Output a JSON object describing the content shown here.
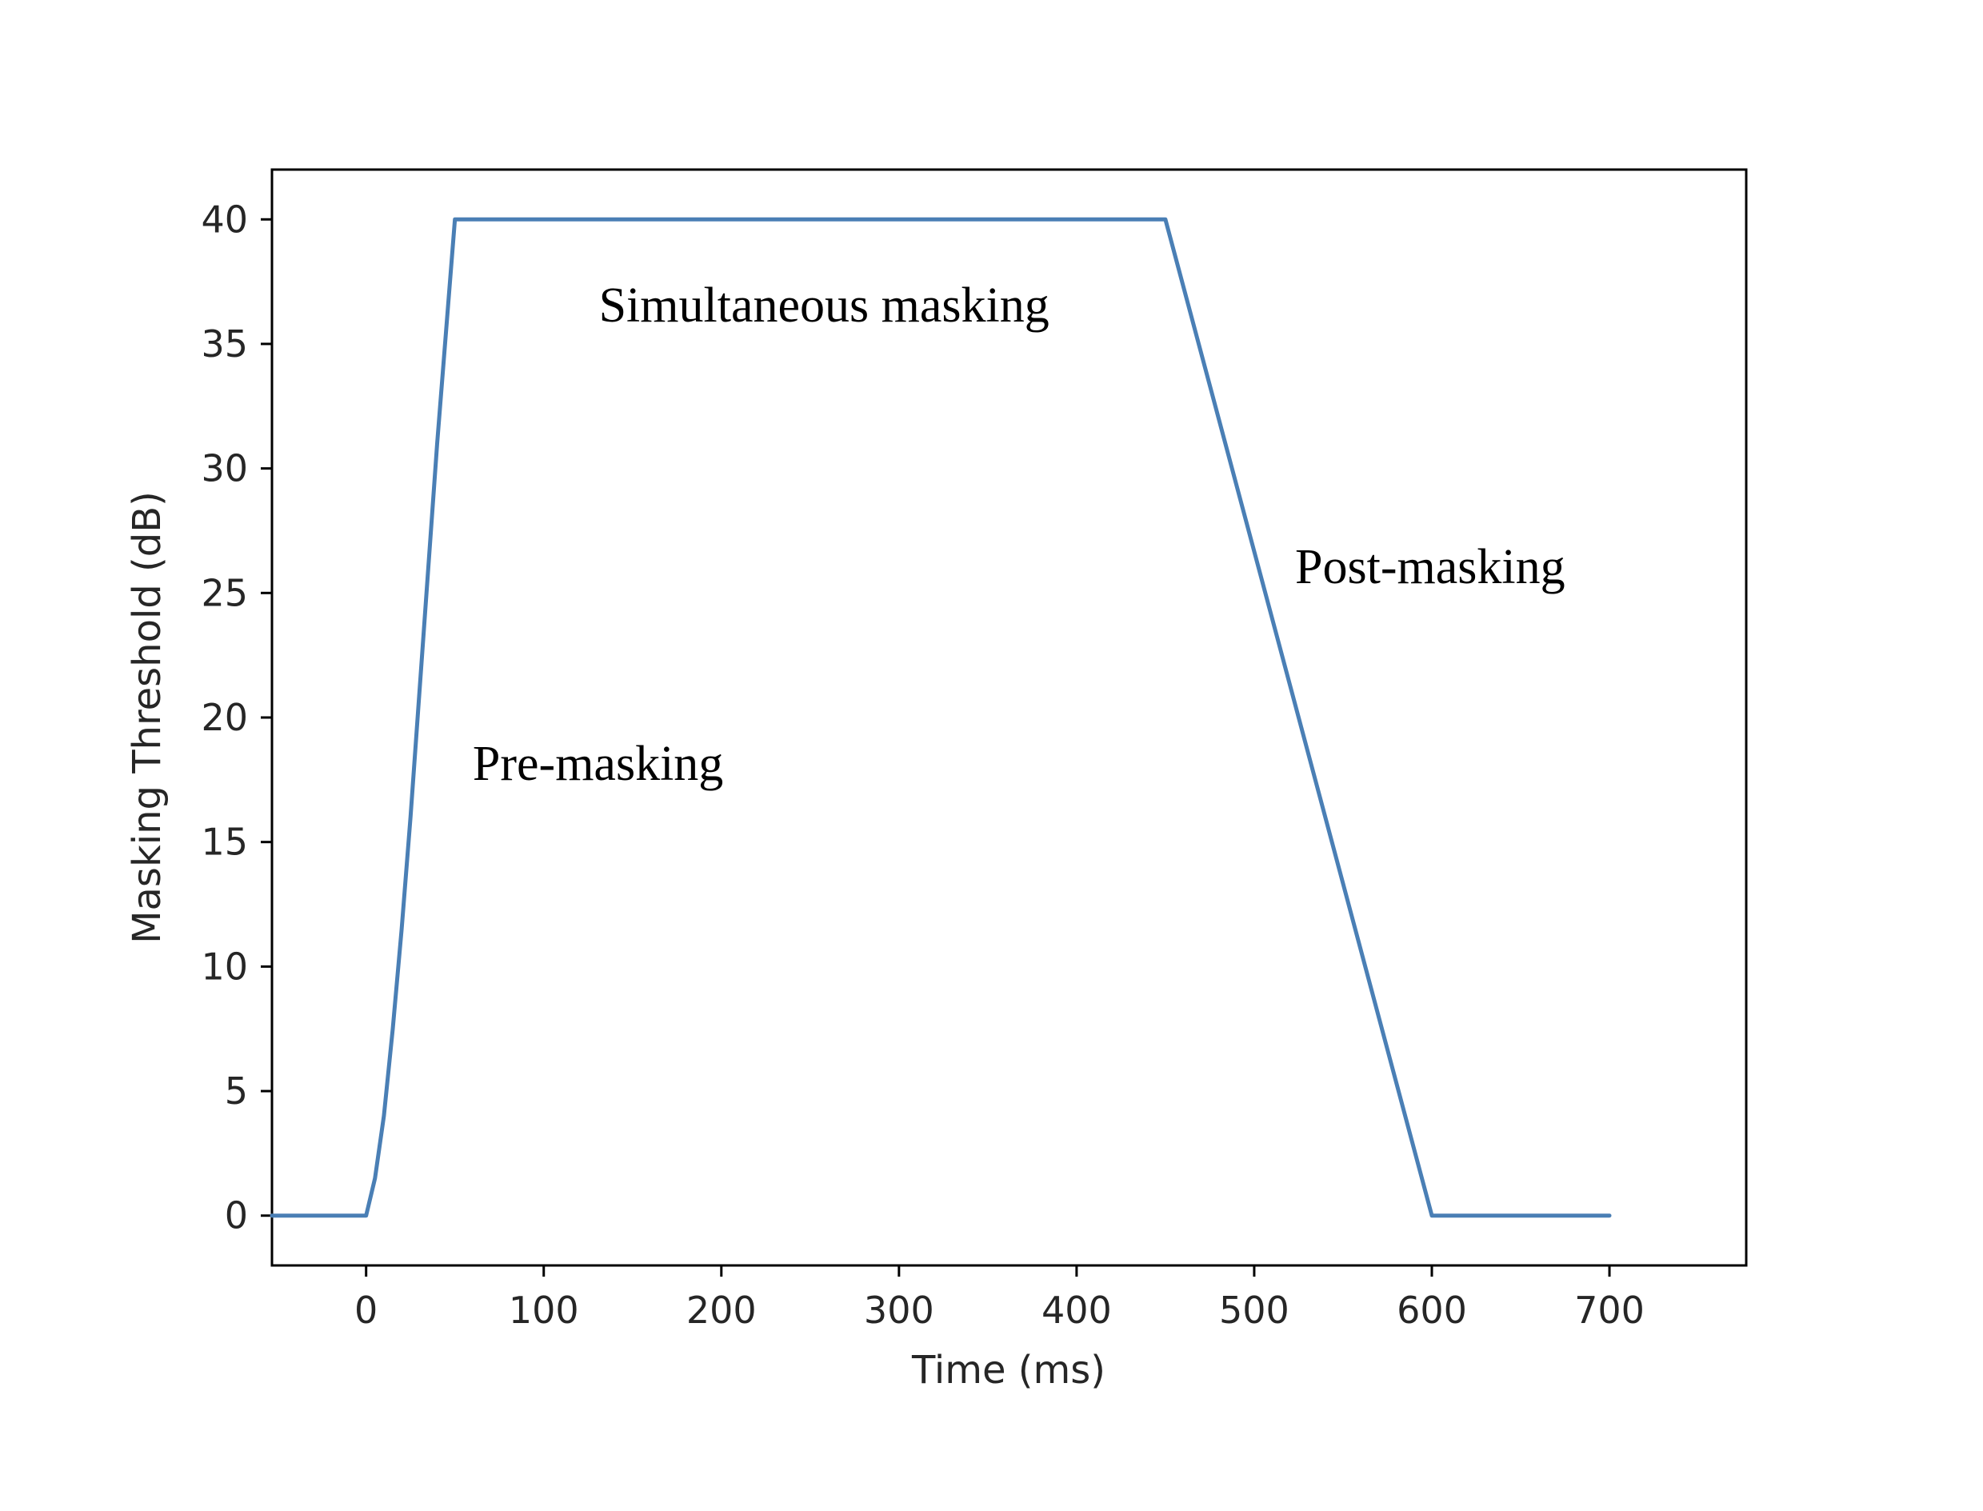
{
  "chart_data": {
    "type": "line",
    "title": "",
    "xlabel": "Time (ms)",
    "ylabel": "Masking Threshold (dB)",
    "xlim": [
      -53,
      777
    ],
    "ylim": [
      -2,
      42
    ],
    "x_ticks": [
      0,
      100,
      200,
      300,
      400,
      500,
      600,
      700
    ],
    "y_ticks": [
      0,
      5,
      10,
      15,
      20,
      25,
      30,
      35,
      40
    ],
    "grid": false,
    "line_color": "#4a7fb5",
    "series": [
      {
        "x": [
          -53,
          0,
          5,
          10,
          15,
          20,
          25,
          30,
          35,
          40,
          45,
          50,
          450,
          600,
          700
        ],
        "y": [
          0,
          0,
          1.5,
          4,
          7.5,
          11.5,
          16,
          21,
          26,
          31,
          35.5,
          40,
          40,
          0,
          0
        ]
      }
    ],
    "annotations": [
      {
        "text": "Simultaneous masking",
        "x": 131,
        "y": 35.9
      },
      {
        "text": "Post-masking",
        "x": 523,
        "y": 25.4
      },
      {
        "text": "Pre-masking",
        "x": 60,
        "y": 17.5
      }
    ]
  }
}
